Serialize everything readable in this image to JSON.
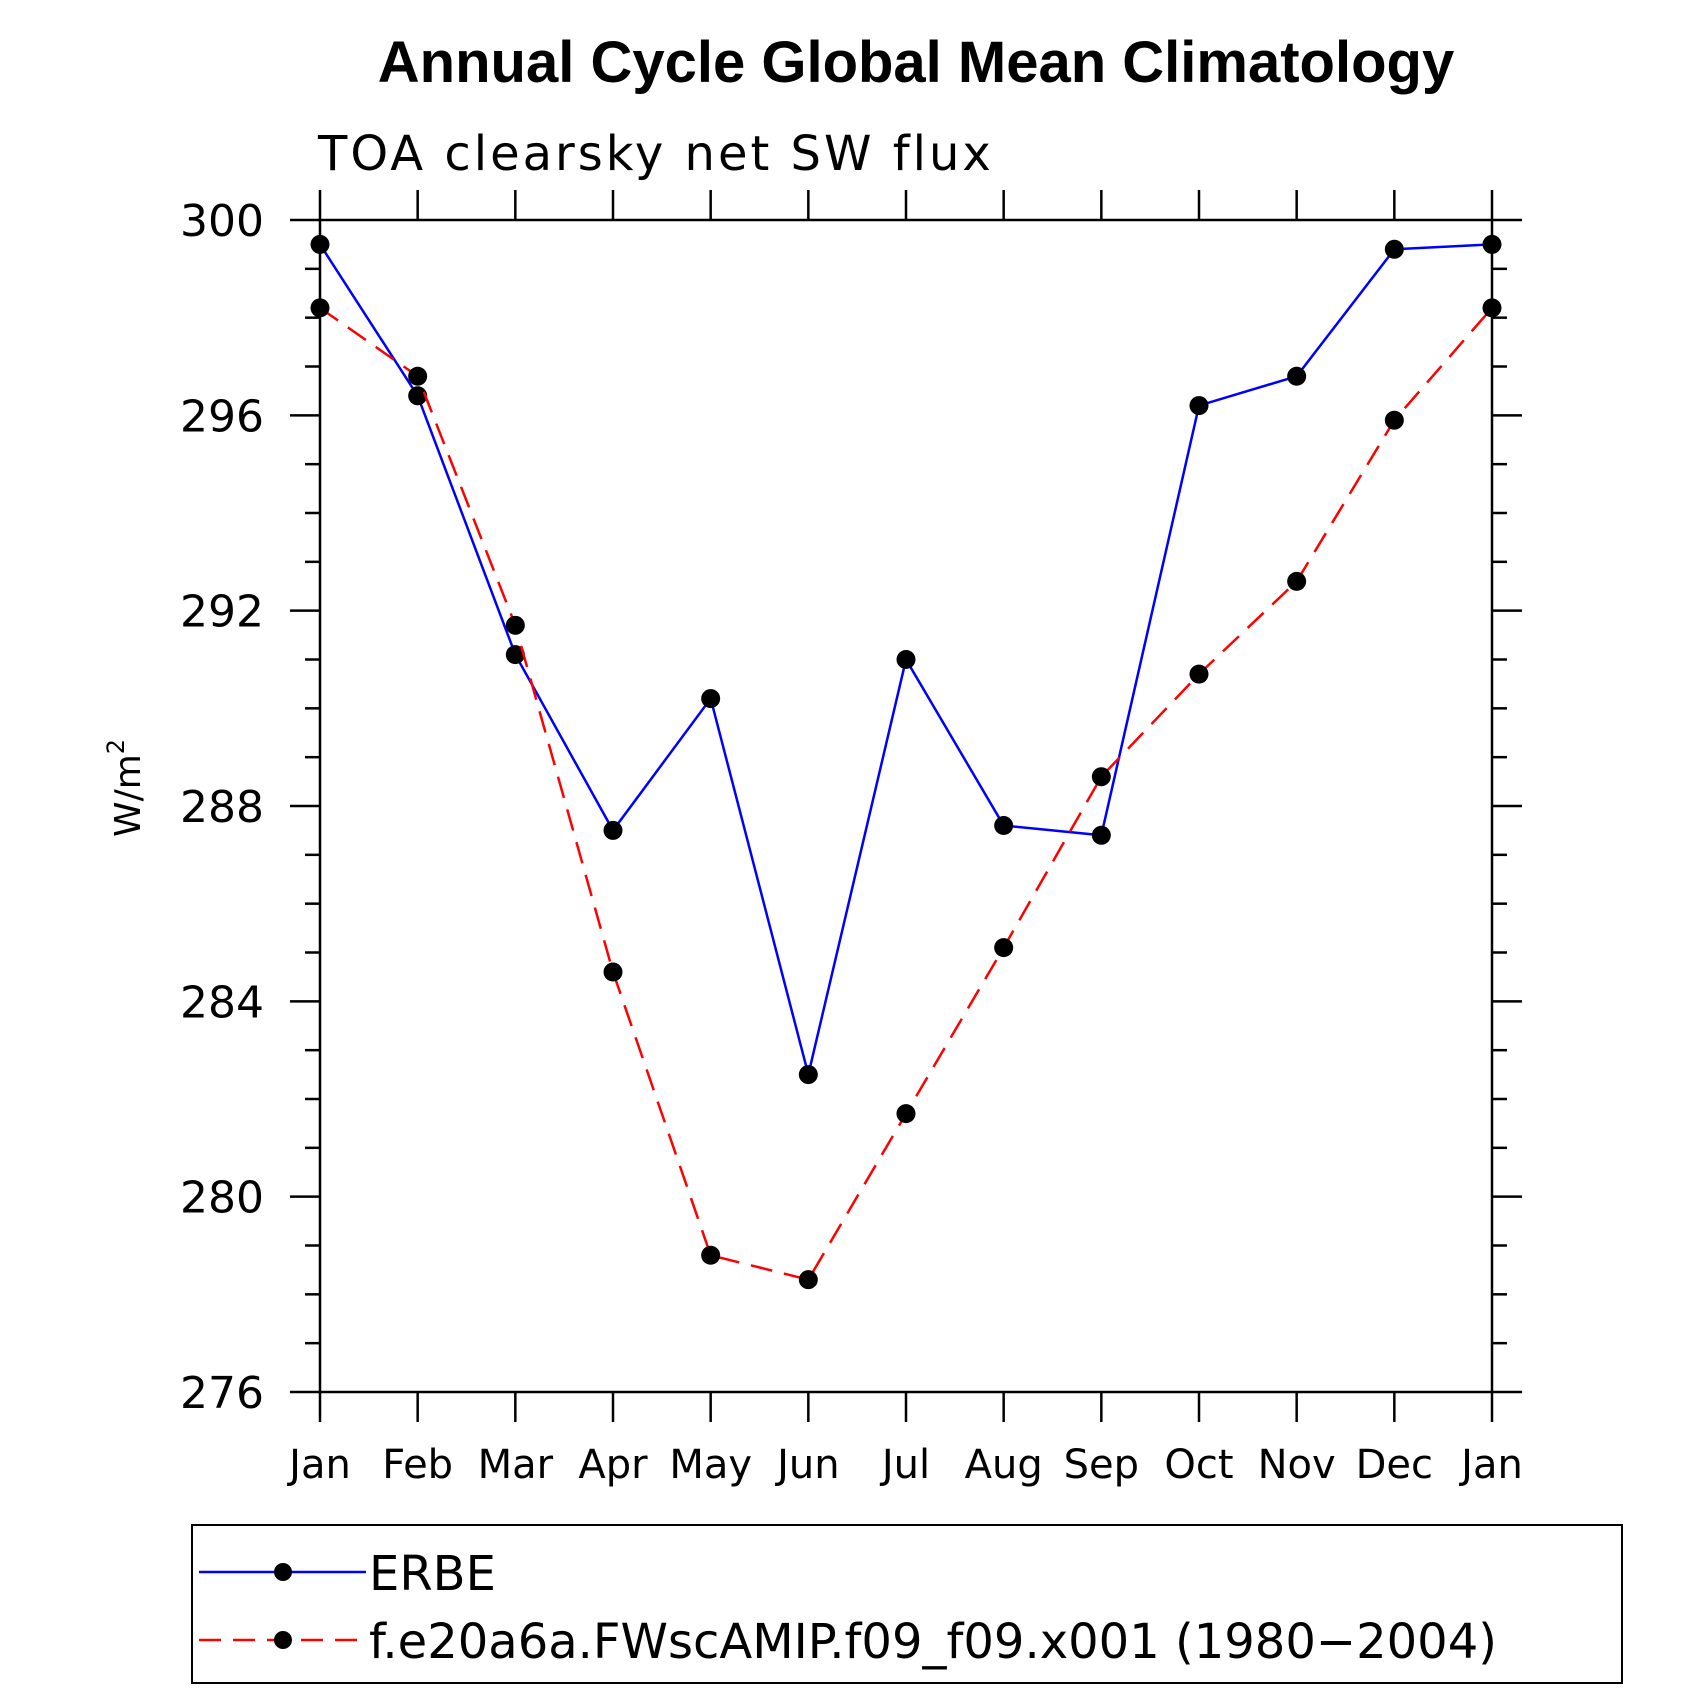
{
  "chart_data": {
    "type": "line",
    "title": "Annual Cycle Global Mean Climatology",
    "subtitle": "TOA clearsky net SW flux",
    "ylabel": "W/m",
    "ylabel_sup": "2",
    "xlabel": "",
    "categories": [
      "Jan",
      "Feb",
      "Mar",
      "Apr",
      "May",
      "Jun",
      "Jul",
      "Aug",
      "Sep",
      "Oct",
      "Nov",
      "Dec",
      "Jan"
    ],
    "ylim": [
      276,
      300
    ],
    "yticks": [
      276,
      280,
      284,
      288,
      292,
      296,
      300
    ],
    "series": [
      {
        "name": "ERBE",
        "color": "#0000ff",
        "dash": "solid",
        "values": [
          299.5,
          296.4,
          291.1,
          287.5,
          290.2,
          282.5,
          291.0,
          287.6,
          287.4,
          296.2,
          296.8,
          299.4,
          299.5
        ]
      },
      {
        "name": "f.e20a6a.FWscAMIP.f09_f09.x001 (1980−2004)",
        "color": "#ff0000",
        "dash": "dashed",
        "values": [
          298.2,
          296.8,
          291.7,
          284.6,
          278.8,
          278.3,
          281.7,
          285.1,
          288.6,
          290.7,
          292.6,
          295.9,
          298.2
        ]
      }
    ],
    "grid": false,
    "legend_position": "bottom"
  }
}
